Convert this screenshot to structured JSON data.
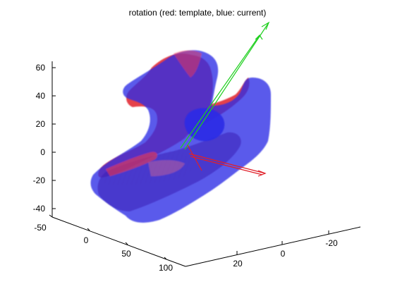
{
  "figure": {
    "title": "rotation (red: template, blue: current)",
    "z_ticks": [
      "60",
      "40",
      "20",
      "0",
      "-20",
      "-40"
    ],
    "x_ticks": [
      "-50",
      "0",
      "50",
      "100"
    ],
    "y_ticks": [
      "-20",
      "0",
      "20"
    ],
    "colors": {
      "template": "#e0202a",
      "current": "#2a2ae6",
      "axis_green": "#1fcf1f",
      "axis_red": "#e0202a",
      "axes": "#000000"
    }
  }
}
